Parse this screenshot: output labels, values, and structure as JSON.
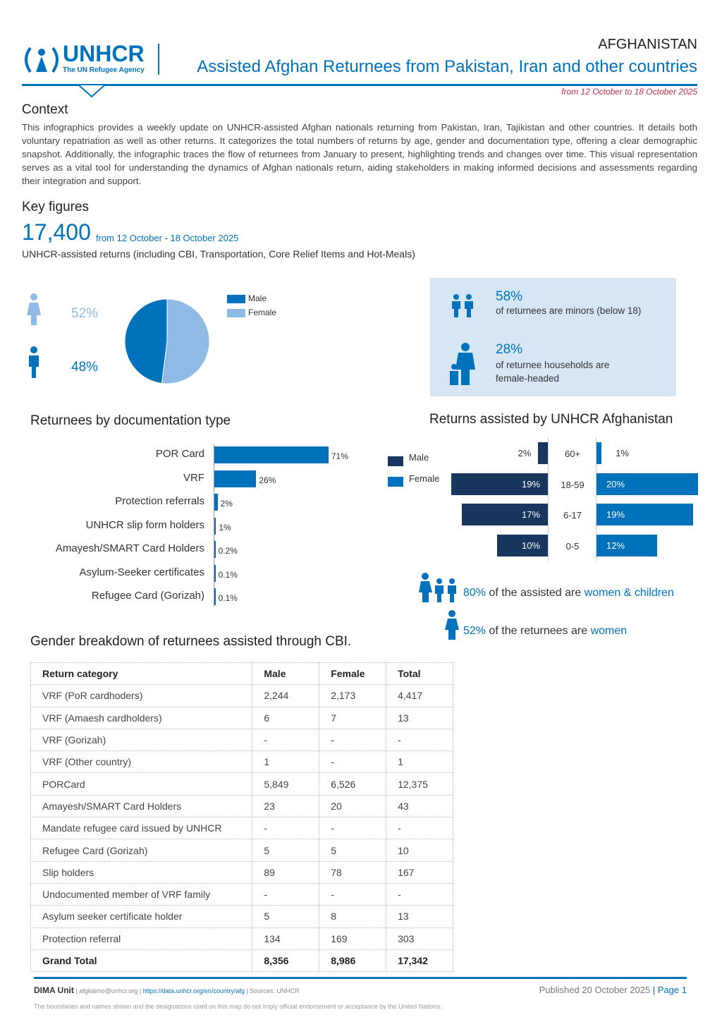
{
  "header": {
    "logo_text": "UNHCR",
    "logo_sub": "The UN Refugee Agency",
    "country": "AFGHANISTAN",
    "title": "Assisted Afghan Returnees from Pakistan, Iran and other countries",
    "date_range": "from 12 October  to 18 October 2025"
  },
  "context": {
    "heading": "Context",
    "text": "This infographics provides a weekly update on UNHCR-assisted Afghan nationals returning from Pakistan, Iran, Tajikistan and other countries. It details both voluntary repatriation as well as other returns. It categorizes the total numbers of returns by age, gender and documentation type, offering a clear demographic snapshot. Additionally, the infographic traces the flow of returnees from January to present, highlighting trends and changes over time. This visual representation serves as a vital tool for understanding the dynamics of Afghan nationals return, aiding stakeholders in making informed decisions and assessments regarding their integration and support."
  },
  "key_figures": {
    "heading": "Key figures",
    "total": "17,400",
    "period": "from 12 October - 18 October 2025",
    "description": "UNHCR-assisted returns (including CBI, Transportation, Core Relief Items and Hot-Meals)"
  },
  "gender_pie": {
    "female_pct": "52%",
    "male_pct": "48%",
    "legend_male": "Male",
    "legend_female": "Female",
    "female_value": 52,
    "male_value": 48,
    "male_color": "#0072bc",
    "female_color": "#8ebae5"
  },
  "highlights": {
    "minors_pct": "58%",
    "minors_text": "of returnees are minors (below 18)",
    "female_head_pct": "28%",
    "female_head_text": "of returnee households are female-headed"
  },
  "chart_data": [
    {
      "type": "bar",
      "title": "Returnees by documentation type",
      "categories": [
        "POR Card",
        "VRF",
        "Protection referrals",
        "UNHCR slip form holders",
        "Amayesh/SMART Card Holders",
        "Asylum-Seeker certificates",
        "Refugee Card (Gorizah)"
      ],
      "values": [
        71,
        26,
        2,
        1,
        0.2,
        0.1,
        0.1
      ],
      "labels": [
        "71%",
        "26%",
        "2%",
        "1%",
        "0.2%",
        "0.1%",
        "0.1%"
      ],
      "color": "#0072bc"
    },
    {
      "type": "bar",
      "title": "Returns assisted by UNHCR Afghanistan",
      "categories": [
        "60+",
        "18-59",
        "6-17",
        "0-5"
      ],
      "series": [
        {
          "name": "Male",
          "values": [
            2,
            19,
            17,
            10
          ],
          "labels": [
            "2%",
            "19%",
            "17%",
            "10%"
          ],
          "color": "#18375f"
        },
        {
          "name": "Female",
          "values": [
            1,
            20,
            19,
            12
          ],
          "labels": [
            "1%",
            "20%",
            "19%",
            "12%"
          ],
          "color": "#0072bc"
        }
      ]
    }
  ],
  "stats": {
    "women_children_pct": "80%",
    "women_children_mid": " of the assisted are ",
    "women_children_end": "women & children",
    "women_pct": "52%",
    "women_mid": " of the returnees are ",
    "women_end": "women"
  },
  "table": {
    "title": "Gender breakdown of returnees assisted through CBI.",
    "headers": [
      "Return category",
      "Male",
      "Female",
      "Total"
    ],
    "rows": [
      [
        "VRF (PoR cardhoders)",
        "2,244",
        "2,173",
        "4,417"
      ],
      [
        "VRF (Amaesh cardholders)",
        "6",
        "7",
        "13"
      ],
      [
        "VRF (Gorizah)",
        "-",
        "-",
        "-"
      ],
      [
        "VRF (Other country)",
        "1",
        "-",
        "1"
      ],
      [
        "PORCard",
        "5,849",
        "6,526",
        "12,375"
      ],
      [
        "Amayesh/SMART Card Holders",
        "23",
        "20",
        "43"
      ],
      [
        "Mandate refugee card issued by UNHCR",
        "-",
        "-",
        "-"
      ],
      [
        "Refugee Card (Gorizah)",
        "5",
        "5",
        "10"
      ],
      [
        "Slip holders",
        "89",
        "78",
        "167"
      ],
      [
        "Undocumented member of VRF family",
        "-",
        "-",
        "-"
      ],
      [
        "Asylum seeker certificate holder",
        "5",
        "8",
        "13"
      ],
      [
        "Protection referral",
        "134",
        "169",
        "303"
      ]
    ],
    "total": [
      "Grand Total",
      "8,356",
      "8,986",
      "17,342"
    ]
  },
  "footer": {
    "unit": "DIMA Unit",
    "email": " | afgkaimo@unhcr.org | ",
    "link": "https://data.unhcr.org/en/country/afg",
    "sources": " | Sources: UNHCR",
    "published": "Published 20 October 2025 ",
    "page": "| Page 1",
    "disclaimer": "The boundaries and names shown and the designations used on this map do not imply official endorsement or acceptance by the United Nations."
  }
}
